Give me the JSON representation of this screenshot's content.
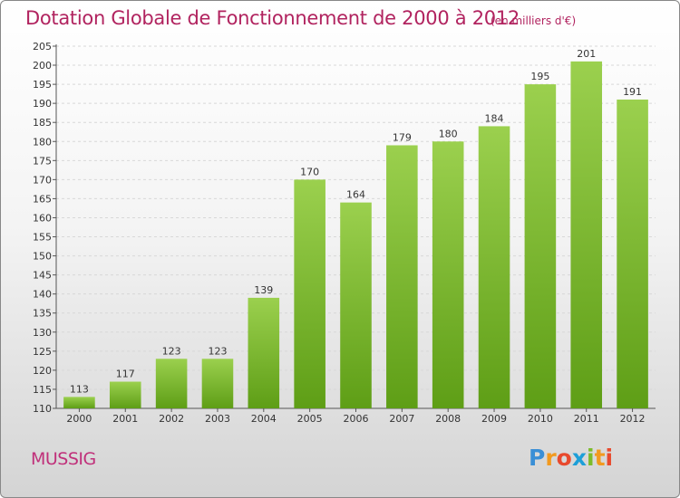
{
  "header": {
    "title": "Dotation Globale de Fonctionnement de 2000 à 2012",
    "subtitle": "(en milliers d'€)"
  },
  "commune": "MUSSIG",
  "logo": {
    "letters": [
      "P",
      "r",
      "o",
      "x",
      "i",
      "t",
      "i"
    ],
    "text": "Proxiti"
  },
  "colors": {
    "bar_top": "#9bd04e",
    "bar_bottom": "#5e9e16",
    "title": "#b1235f"
  },
  "chart_data": {
    "type": "bar",
    "categories": [
      "2000",
      "2001",
      "2002",
      "2003",
      "2004",
      "2005",
      "2006",
      "2007",
      "2008",
      "2009",
      "2010",
      "2011",
      "2012"
    ],
    "values": [
      113,
      117,
      123,
      123,
      139,
      170,
      164,
      179,
      180,
      184,
      195,
      201,
      191
    ],
    "title": "Dotation Globale de Fonctionnement de 2000 à 2012",
    "subtitle": "(en milliers d'€)",
    "ylim": [
      110,
      205
    ],
    "yticks": [
      110,
      115,
      120,
      125,
      130,
      135,
      140,
      145,
      150,
      155,
      160,
      165,
      170,
      175,
      180,
      185,
      190,
      195,
      200,
      205
    ],
    "grid": true,
    "legend": "none"
  }
}
